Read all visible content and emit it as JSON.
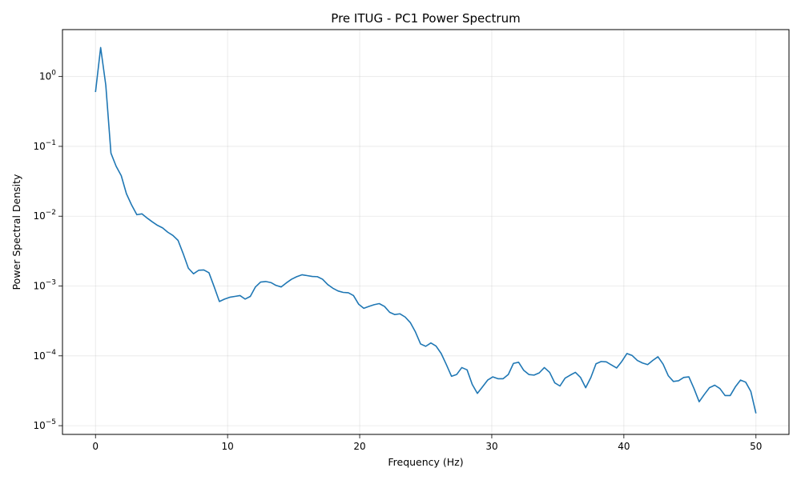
{
  "chart_data": {
    "type": "line",
    "title": "Pre ITUG - PC1 Power Spectrum",
    "xlabel": "Frequency (Hz)",
    "ylabel": "Power Spectral Density",
    "xlim": [
      -2.5,
      52.5
    ],
    "ylim": [
      7.5e-06,
      4.7
    ],
    "yscale": "log",
    "grid": true,
    "line_color": "#1f77b4",
    "x_ticks": [
      {
        "value": 0,
        "label": "0"
      },
      {
        "value": 10,
        "label": "10"
      },
      {
        "value": 20,
        "label": "20"
      },
      {
        "value": 30,
        "label": "30"
      },
      {
        "value": 40,
        "label": "40"
      },
      {
        "value": 50,
        "label": "50"
      }
    ],
    "y_ticks": [
      {
        "value": 1e-05,
        "base": "10",
        "exp": "−5"
      },
      {
        "value": 0.0001,
        "base": "10",
        "exp": "−4"
      },
      {
        "value": 0.001,
        "base": "10",
        "exp": "−3"
      },
      {
        "value": 0.01,
        "base": "10",
        "exp": "−2"
      },
      {
        "value": 0.1,
        "base": "10",
        "exp": "−1"
      },
      {
        "value": 1,
        "base": "10",
        "exp": "0"
      }
    ],
    "series": [
      {
        "x": [
          0,
          0.39,
          0.78,
          1.17,
          1.56,
          1.95,
          2.34,
          2.73,
          3.13,
          3.52,
          3.91,
          4.3,
          4.69,
          5.08,
          5.47,
          5.86,
          6.25,
          6.64,
          7.03,
          7.42,
          7.81,
          8.2,
          8.59,
          8.98,
          9.38,
          9.77,
          10.16,
          10.55,
          10.94,
          11.33,
          11.72,
          12.11,
          12.5,
          12.89,
          13.28,
          13.67,
          14.06,
          14.45,
          14.84,
          15.23,
          15.63,
          16.02,
          16.41,
          16.8,
          17.19,
          17.58,
          17.97,
          18.36,
          18.75,
          19.14,
          19.53,
          19.92,
          20.31,
          20.7,
          21.09,
          21.48,
          21.88,
          22.27,
          22.66,
          23.05,
          23.44,
          23.83,
          24.22,
          24.61,
          25,
          25.39,
          25.78,
          26.17,
          26.56,
          26.95,
          27.34,
          27.73,
          28.13,
          28.52,
          28.91,
          29.3,
          29.69,
          30.08,
          30.47,
          30.86,
          31.25,
          31.64,
          32.03,
          32.42,
          32.81,
          33.2,
          33.59,
          33.98,
          34.38,
          34.77,
          35.16,
          35.55,
          35.94,
          36.33,
          36.72,
          37.11,
          37.5,
          37.89,
          38.28,
          38.67,
          39.06,
          39.45,
          39.84,
          40.23,
          40.63,
          41.02,
          41.41,
          41.8,
          42.19,
          42.58,
          42.97,
          43.36,
          43.75,
          44.14,
          44.53,
          44.92,
          45.31,
          45.7,
          46.09,
          46.48,
          46.88,
          47.27,
          47.66,
          48.05,
          48.44,
          48.83,
          49.22,
          49.61,
          50
        ],
        "y": [
          0.6,
          2.6,
          0.75,
          0.08,
          0.052,
          0.038,
          0.021,
          0.0145,
          0.0105,
          0.0108,
          0.0094,
          0.0083,
          0.0074,
          0.0068,
          0.0059,
          0.0053,
          0.0045,
          0.0029,
          0.0018,
          0.0015,
          0.00168,
          0.0017,
          0.00155,
          0.00098,
          0.0006,
          0.00065,
          0.00069,
          0.00071,
          0.00073,
          0.00065,
          0.00071,
          0.00097,
          0.00114,
          0.00116,
          0.00112,
          0.00102,
          0.00097,
          0.00111,
          0.00125,
          0.00136,
          0.00145,
          0.00141,
          0.00137,
          0.00136,
          0.00125,
          0.00105,
          0.00093,
          0.00085,
          0.00081,
          0.0008,
          0.00073,
          0.00055,
          0.00048,
          0.00051,
          0.00054,
          0.00056,
          0.00051,
          0.00042,
          0.00039,
          0.0004,
          0.00036,
          0.0003,
          0.00022,
          0.000148,
          0.000137,
          0.000153,
          0.000138,
          0.000108,
          7.5e-05,
          5.1e-05,
          5.4e-05,
          6.8e-05,
          6.3e-05,
          3.9e-05,
          2.9e-05,
          3.6e-05,
          4.5e-05,
          5e-05,
          4.7e-05,
          4.7e-05,
          5.4e-05,
          7.8e-05,
          8.1e-05,
          6.2e-05,
          5.4e-05,
          5.3e-05,
          5.7e-05,
          6.8e-05,
          5.8e-05,
          4.1e-05,
          3.7e-05,
          4.8e-05,
          5.3e-05,
          5.8e-05,
          4.9e-05,
          3.5e-05,
          4.9e-05,
          7.7e-05,
          8.3e-05,
          8.2e-05,
          7.4e-05,
          6.7e-05,
          8.3e-05,
          0.000108,
          0.000101,
          8.6e-05,
          7.9e-05,
          7.5e-05,
          8.6e-05,
          9.7e-05,
          7.6e-05,
          5.2e-05,
          4.3e-05,
          4.4e-05,
          4.9e-05,
          5e-05,
          3.4e-05,
          2.2e-05,
          2.8e-05,
          3.5e-05,
          3.8e-05,
          3.4e-05,
          2.7e-05,
          2.7e-05,
          3.6e-05,
          4.5e-05,
          4.2e-05,
          3.1e-05,
          1.5e-05
        ]
      }
    ]
  }
}
